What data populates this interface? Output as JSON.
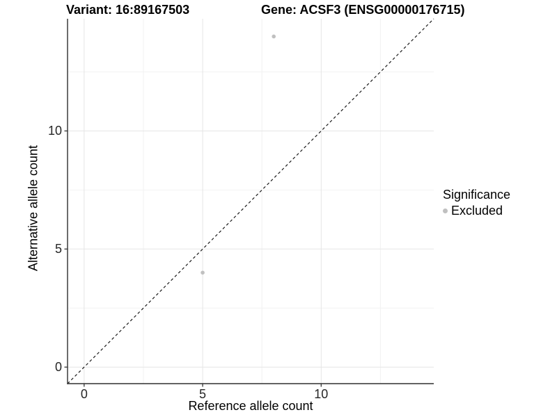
{
  "title": {
    "variant_label": "Variant: 16:89167503",
    "gene_label": "Gene: ACSF3 (ENSG00000176715)"
  },
  "chart_data": {
    "type": "scatter",
    "xlabel": "Reference allele count",
    "ylabel": "Alternative allele count",
    "xlim": [
      -0.7,
      14.75
    ],
    "ylim": [
      -0.7,
      14.75
    ],
    "x_major_ticks": [
      0,
      5,
      10
    ],
    "y_major_ticks": [
      0,
      5,
      10
    ],
    "x_minor_gridlines": [
      2.5,
      7.5,
      12.5
    ],
    "y_minor_gridlines": [
      2.5,
      7.5,
      12.5
    ],
    "grid": "major and minor light-gray gridlines on white panel",
    "reference_line": {
      "type": "identity",
      "slope": 1,
      "intercept": 0,
      "style": "dashed"
    },
    "series": [
      {
        "name": "Excluded",
        "color": "#c0c0c0",
        "points": [
          {
            "x": 5,
            "y": 4
          },
          {
            "x": 8,
            "y": 14
          }
        ]
      }
    ],
    "legend": {
      "title": "Significance",
      "position": "right",
      "entries": [
        {
          "label": "Excluded",
          "color": "#c0c0c0"
        }
      ]
    }
  },
  "colors": {
    "axis_line": "#2e2e2e",
    "tick_mark": "#333333",
    "grid_major": "#e5e5e5",
    "grid_minor": "#f2f2f2",
    "reference_line": "#1a1a1a",
    "point": "#c0c0c0",
    "background": "#ffffff"
  }
}
